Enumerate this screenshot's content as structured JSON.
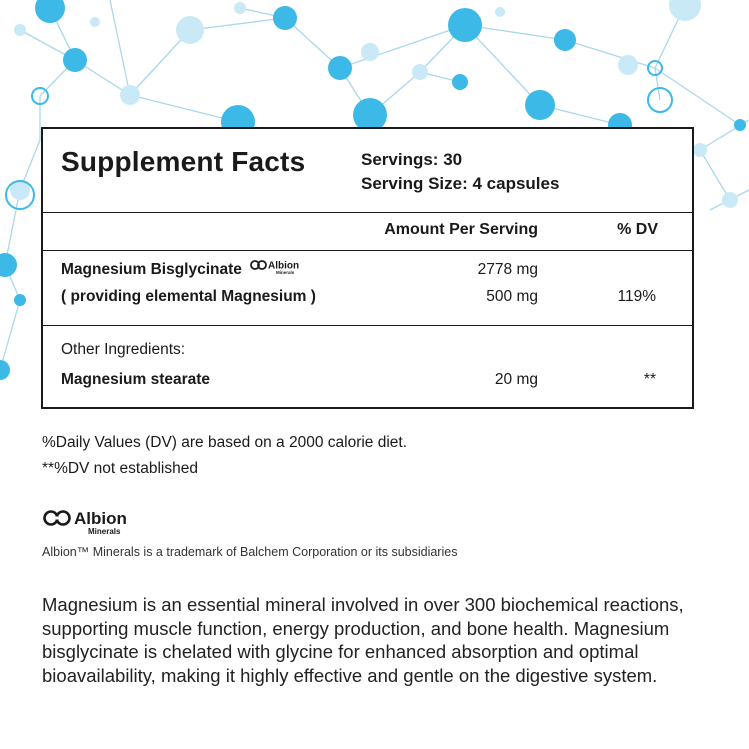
{
  "colors": {
    "network_light": "#c9e9f6",
    "network_bright": "#3cb9e6",
    "network_line": "#a9d8ec",
    "border": "#1a1a1a"
  },
  "supplement_facts": {
    "title": "Supplement Facts",
    "servings": "Servings: 30",
    "serving_size": "Serving Size: 4 capsules",
    "columns": {
      "amount": "Amount Per Serving",
      "dv": "% DV"
    },
    "ingredients": [
      {
        "name": "Magnesium Bisglycinate",
        "amount": "2778 mg",
        "dv": "",
        "logo": "albion-minerals-logo"
      },
      {
        "name": "( providing elemental Magnesium )",
        "amount": "500 mg",
        "dv": "119%"
      }
    ],
    "other_label": "Other Ingredients:",
    "other_ingredients": [
      {
        "name": "Magnesium stearate",
        "amount": "20 mg",
        "dv": "**"
      }
    ]
  },
  "notes": [
    "%Daily Values (DV) are based on a 2000 calorie diet.",
    "**%DV not established"
  ],
  "albion": {
    "brand": "Albion",
    "sub": "Minerals"
  },
  "trademark": "Albion™ Minerals is a trademark of Balchem Corporation or its subsidiaries",
  "description": "Magnesium is an essential mineral involved in over 300 biochemical reactions, supporting muscle function, energy production, and bone health. Magnesium bisglycinate is chelated with glycine for enhanced absorption and optimal bioavailability, making it highly effective and gentle on the digestive system."
}
